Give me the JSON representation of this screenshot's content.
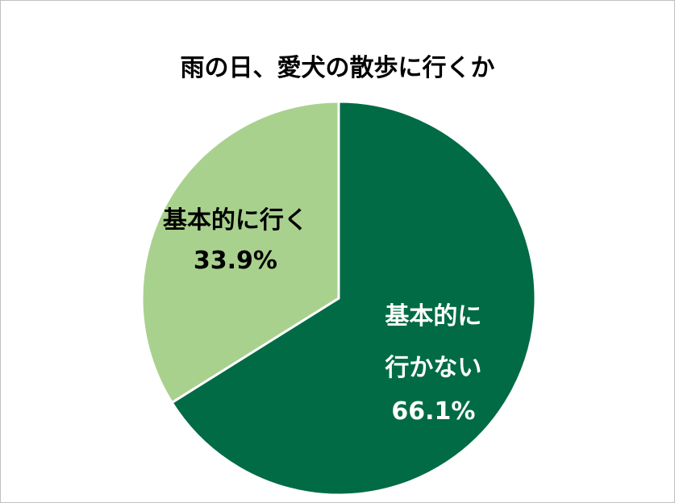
{
  "chart_data": {
    "type": "pie",
    "title": "雨の日、愛犬の散歩に行くか",
    "categories": [
      "基本的に行かない",
      "基本的に行く"
    ],
    "values": [
      66.1,
      33.9
    ],
    "value_labels": [
      "66.1%",
      "33.9%"
    ],
    "colors": [
      "#006b45",
      "#a9d18e"
    ],
    "label_colors": [
      "#ffffff",
      "#000000"
    ]
  }
}
